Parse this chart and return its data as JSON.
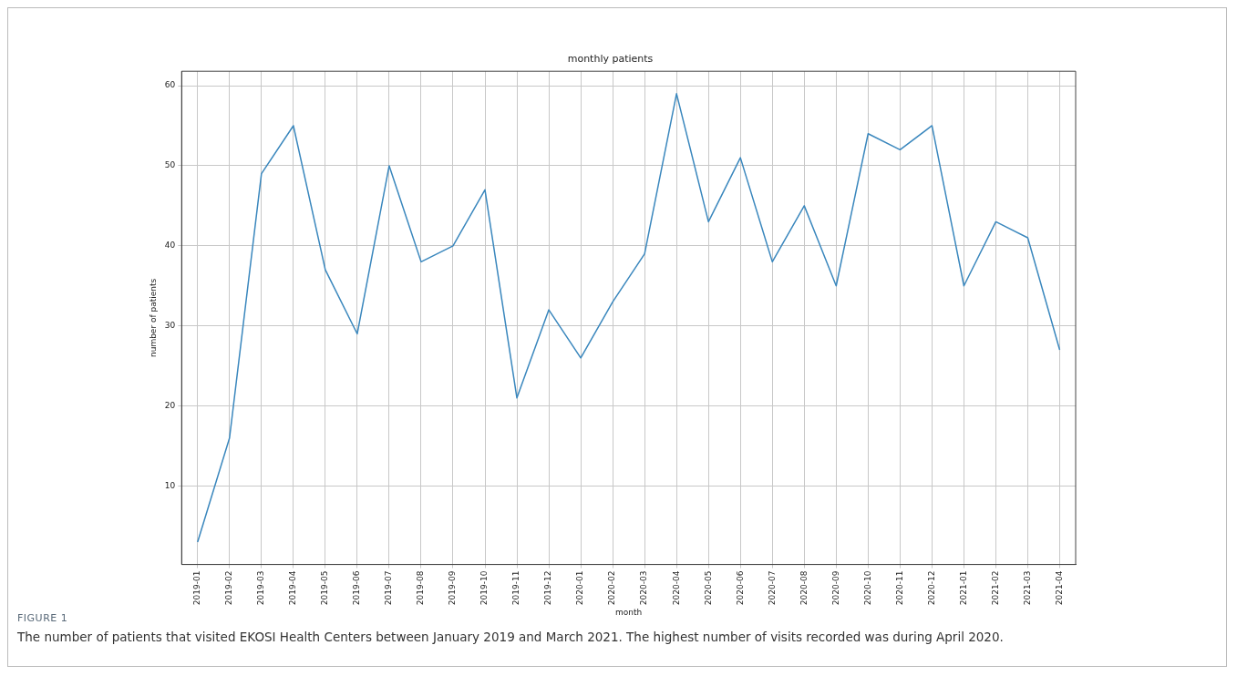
{
  "chart_data": {
    "type": "line",
    "title": "monthly patients",
    "xlabel": "month",
    "ylabel": "number of patients",
    "categories": [
      "2019-01",
      "2019-02",
      "2019-03",
      "2019-04",
      "2019-05",
      "2019-06",
      "2019-07",
      "2019-08",
      "2019-09",
      "2019-10",
      "2019-11",
      "2019-12",
      "2020-01",
      "2020-02",
      "2020-03",
      "2020-04",
      "2020-05",
      "2020-06",
      "2020-07",
      "2020-08",
      "2020-09",
      "2020-10",
      "2020-11",
      "2020-12",
      "2021-01",
      "2021-02",
      "2021-03",
      "2021-04"
    ],
    "series": [
      {
        "color": "#3a87bd",
        "values": [
          3,
          16,
          49,
          55,
          37,
          29,
          50,
          38,
          40,
          47,
          21,
          32,
          26,
          33,
          39,
          59,
          43,
          51,
          38,
          45,
          35,
          54,
          52,
          55,
          35,
          43,
          41,
          27
        ]
      }
    ],
    "ylim": [
      0.2,
      61.8
    ],
    "yticks": [
      10,
      20,
      30,
      40,
      50,
      60
    ],
    "grid": true,
    "marker": "none",
    "line_style": "solid",
    "legend": false,
    "annotations": [
      "FIGURE 1",
      "The number of patients that visited EKOSI Health Centers between January 2019 and March 2021. The highest number of visits recorded was during April 2020."
    ]
  }
}
